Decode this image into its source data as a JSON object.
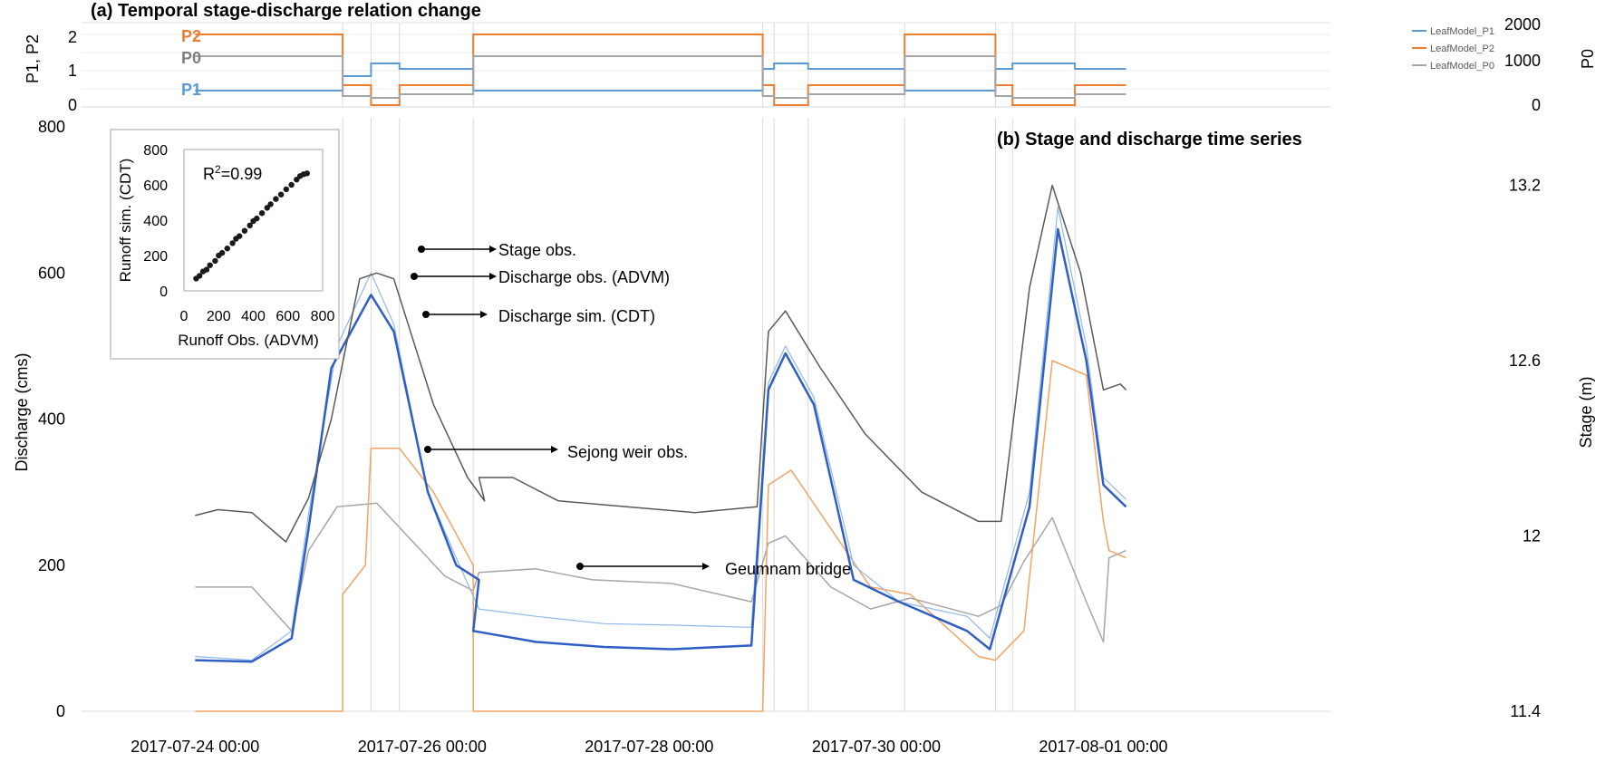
{
  "panel_a": {
    "title": "(a) Temporal stage-discharge relation change",
    "ylabel_left": "P1, P2",
    "ylabel_right": "P0",
    "left_ticks": [
      "2",
      "1",
      "0"
    ],
    "right_ticks": [
      "2000",
      "1000",
      "0"
    ],
    "series_labels": {
      "p2": "P2",
      "p0": "P0",
      "p1": "P1"
    },
    "legend": [
      "LeafModel_P1",
      "LeafModel_P2",
      "LeafModel_P0"
    ]
  },
  "panel_b": {
    "title": "(b) Stage and discharge time series",
    "ylabel_left": "Discharge (cms)",
    "ylabel_right": "Stage (m)",
    "left_ticks": [
      "800",
      "600",
      "400",
      "200",
      "0"
    ],
    "right_ticks": [
      "13.2",
      "12.6",
      "12",
      "11.4"
    ],
    "x_ticks": [
      "2017-07-24 00:00",
      "2017-07-26 00:00",
      "2017-07-28 00:00",
      "2017-07-30 00:00",
      "2017-08-01 00:00"
    ],
    "annotations": {
      "stage": "Stage obs.",
      "discharge_obs": "Discharge obs. (ADVM)",
      "discharge_sim": "Discharge sim. (CDT)",
      "sejong": "Sejong weir obs.",
      "geumnam": "Geumnam bridge"
    }
  },
  "inset": {
    "r2_prefix": "R",
    "r2_sup": "2",
    "r2_value": "=0.99",
    "xlabel": "Runoff Obs. (ADVM)",
    "ylabel": "Runoff sim. (CDT)",
    "x_ticks": [
      "0",
      "200",
      "400",
      "600",
      "800"
    ],
    "y_ticks": [
      "800",
      "600",
      "400",
      "200",
      "0"
    ]
  },
  "colors": {
    "p1": "#5b9bd5",
    "p2": "#ed7d31",
    "p0": "#a5a5a5",
    "discharge_sim": "#2f5fc4",
    "discharge_obs": "#8fb8e8",
    "stage": "#595959",
    "sejong": "#f4a261",
    "geumnam": "#a6a6a6"
  },
  "chart_data": [
    {
      "type": "line",
      "title": "(a) Temporal stage-discharge relation change",
      "x_unit": "days since 2017-07-24 00:00",
      "x_range": [
        -1,
        10
      ],
      "ylim_left": [
        0,
        2
      ],
      "ylim_right": [
        0,
        2000
      ],
      "series": [
        {
          "name": "LeafModel_P1",
          "axis": "left",
          "steps": [
            [
              0,
              0.45
            ],
            [
              1.3,
              0.45
            ],
            [
              1.3,
              0.85
            ],
            [
              1.55,
              0.85
            ],
            [
              1.55,
              1.2
            ],
            [
              1.8,
              1.2
            ],
            [
              1.8,
              1.05
            ],
            [
              2.45,
              1.05
            ],
            [
              2.45,
              0.45
            ],
            [
              5.0,
              0.45
            ],
            [
              5.0,
              1.05
            ],
            [
              5.1,
              1.05
            ],
            [
              5.1,
              1.2
            ],
            [
              5.4,
              1.2
            ],
            [
              5.4,
              1.05
            ],
            [
              6.25,
              1.05
            ],
            [
              6.25,
              0.45
            ],
            [
              7.05,
              0.45
            ],
            [
              7.05,
              1.05
            ],
            [
              7.2,
              1.05
            ],
            [
              7.2,
              1.2
            ],
            [
              7.75,
              1.2
            ],
            [
              7.75,
              1.05
            ],
            [
              8.2,
              1.05
            ]
          ]
        },
        {
          "name": "LeafModel_P2",
          "axis": "left",
          "steps": [
            [
              0,
              2.0
            ],
            [
              1.3,
              2.0
            ],
            [
              1.3,
              0.6
            ],
            [
              1.55,
              0.6
            ],
            [
              1.55,
              0.05
            ],
            [
              1.8,
              0.05
            ],
            [
              1.8,
              0.6
            ],
            [
              2.45,
              0.6
            ],
            [
              2.45,
              2.0
            ],
            [
              5.0,
              2.0
            ],
            [
              5.0,
              0.6
            ],
            [
              5.1,
              0.6
            ],
            [
              5.1,
              0.05
            ],
            [
              5.4,
              0.05
            ],
            [
              5.4,
              0.6
            ],
            [
              6.25,
              0.6
            ],
            [
              6.25,
              2.0
            ],
            [
              7.05,
              2.0
            ],
            [
              7.05,
              0.6
            ],
            [
              7.2,
              0.6
            ],
            [
              7.2,
              0.05
            ],
            [
              7.75,
              0.05
            ],
            [
              7.75,
              0.6
            ],
            [
              8.2,
              0.6
            ]
          ]
        },
        {
          "name": "LeafModel_P0",
          "axis": "right",
          "steps": [
            [
              0,
              1400
            ],
            [
              1.3,
              1400
            ],
            [
              1.3,
              300
            ],
            [
              1.55,
              300
            ],
            [
              1.55,
              250
            ],
            [
              1.8,
              250
            ],
            [
              1.8,
              350
            ],
            [
              2.45,
              350
            ],
            [
              2.45,
              1400
            ],
            [
              5.0,
              1400
            ],
            [
              5.0,
              300
            ],
            [
              5.1,
              300
            ],
            [
              5.1,
              250
            ],
            [
              5.4,
              250
            ],
            [
              5.4,
              350
            ],
            [
              6.25,
              350
            ],
            [
              6.25,
              1400
            ],
            [
              7.05,
              1400
            ],
            [
              7.05,
              300
            ],
            [
              7.2,
              300
            ],
            [
              7.2,
              250
            ],
            [
              7.75,
              250
            ],
            [
              7.75,
              350
            ],
            [
              8.2,
              350
            ]
          ]
        }
      ]
    },
    {
      "type": "line",
      "title": "(b) Stage and discharge time series",
      "x_unit": "days since 2017-07-24 00:00",
      "x_range": [
        -1,
        10
      ],
      "ylabel": "Discharge (cms)",
      "ylim": [
        0,
        800
      ],
      "ylabel_right": "Stage (m)",
      "ylim_right": [
        11.4,
        13.4
      ],
      "series": [
        {
          "name": "Stage obs.",
          "axis": "right",
          "points": [
            [
              0,
              12.07
            ],
            [
              0.2,
              12.09
            ],
            [
              0.5,
              12.08
            ],
            [
              0.8,
              11.98
            ],
            [
              1.0,
              12.13
            ],
            [
              1.2,
              12.4
            ],
            [
              1.45,
              12.88
            ],
            [
              1.6,
              12.9
            ],
            [
              1.75,
              12.88
            ],
            [
              2.1,
              12.45
            ],
            [
              2.4,
              12.2
            ],
            [
              2.55,
              12.12
            ],
            [
              2.5,
              12.2
            ],
            [
              2.8,
              12.2
            ],
            [
              3.2,
              12.12
            ],
            [
              3.8,
              12.1
            ],
            [
              4.4,
              12.08
            ],
            [
              4.95,
              12.1
            ],
            [
              5.05,
              12.7
            ],
            [
              5.2,
              12.77
            ],
            [
              5.5,
              12.58
            ],
            [
              5.9,
              12.35
            ],
            [
              6.4,
              12.15
            ],
            [
              6.9,
              12.05
            ],
            [
              7.1,
              12.05
            ],
            [
              7.35,
              12.85
            ],
            [
              7.55,
              13.2
            ],
            [
              7.8,
              12.9
            ],
            [
              8.0,
              12.5
            ],
            [
              8.15,
              12.52
            ],
            [
              8.2,
              12.5
            ]
          ]
        },
        {
          "name": "Discharge sim. (CDT)",
          "axis": "left",
          "points": [
            [
              0,
              70
            ],
            [
              0.5,
              68
            ],
            [
              0.85,
              100
            ],
            [
              1.0,
              250
            ],
            [
              1.2,
              470
            ],
            [
              1.55,
              570
            ],
            [
              1.75,
              520
            ],
            [
              2.05,
              300
            ],
            [
              2.3,
              200
            ],
            [
              2.5,
              180
            ],
            [
              2.45,
              110
            ],
            [
              3.0,
              95
            ],
            [
              3.6,
              88
            ],
            [
              4.2,
              85
            ],
            [
              4.9,
              90
            ],
            [
              5.05,
              440
            ],
            [
              5.2,
              490
            ],
            [
              5.45,
              420
            ],
            [
              5.8,
              180
            ],
            [
              6.2,
              150
            ],
            [
              6.8,
              110
            ],
            [
              7.0,
              85
            ],
            [
              7.35,
              280
            ],
            [
              7.6,
              660
            ],
            [
              7.85,
              480
            ],
            [
              8.0,
              310
            ],
            [
              8.2,
              280
            ]
          ]
        },
        {
          "name": "Discharge obs. (ADVM)",
          "axis": "left",
          "points": [
            [
              0,
              75
            ],
            [
              0.5,
              70
            ],
            [
              0.85,
              110
            ],
            [
              1.0,
              270
            ],
            [
              1.25,
              500
            ],
            [
              1.55,
              600
            ],
            [
              1.75,
              530
            ],
            [
              2.05,
              300
            ],
            [
              2.3,
              210
            ],
            [
              2.5,
              140
            ],
            [
              3.0,
              130
            ],
            [
              3.6,
              120
            ],
            [
              4.2,
              118
            ],
            [
              4.9,
              115
            ],
            [
              5.05,
              450
            ],
            [
              5.2,
              500
            ],
            [
              5.45,
              430
            ],
            [
              5.8,
              200
            ],
            [
              6.2,
              150
            ],
            [
              6.8,
              130
            ],
            [
              7.0,
              100
            ],
            [
              7.35,
              300
            ],
            [
              7.6,
              690
            ],
            [
              7.85,
              500
            ],
            [
              8.0,
              320
            ],
            [
              8.2,
              290
            ]
          ]
        },
        {
          "name": "Sejong weir obs.",
          "axis": "left",
          "points": [
            [
              0,
              0
            ],
            [
              1.3,
              0
            ],
            [
              1.3,
              160
            ],
            [
              1.5,
              200
            ],
            [
              1.55,
              360
            ],
            [
              1.8,
              360
            ],
            [
              2.1,
              300
            ],
            [
              2.45,
              200
            ],
            [
              2.45,
              0
            ],
            [
              5.0,
              0
            ],
            [
              5.05,
              310
            ],
            [
              5.25,
              330
            ],
            [
              5.6,
              250
            ],
            [
              5.95,
              170
            ],
            [
              6.3,
              160
            ],
            [
              6.9,
              75
            ],
            [
              7.05,
              70
            ],
            [
              7.3,
              110
            ],
            [
              7.55,
              480
            ],
            [
              7.85,
              460
            ],
            [
              8.0,
              260
            ],
            [
              8.05,
              220
            ],
            [
              8.2,
              210
            ]
          ]
        },
        {
          "name": "Geumnam bridge",
          "axis": "left",
          "points": [
            [
              0,
              170
            ],
            [
              0.5,
              170
            ],
            [
              0.85,
              110
            ],
            [
              1.0,
              220
            ],
            [
              1.25,
              280
            ],
            [
              1.6,
              285
            ],
            [
              2.2,
              185
            ],
            [
              2.45,
              165
            ],
            [
              2.5,
              190
            ],
            [
              3.0,
              195
            ],
            [
              3.5,
              180
            ],
            [
              4.2,
              175
            ],
            [
              4.9,
              150
            ],
            [
              5.05,
              230
            ],
            [
              5.2,
              240
            ],
            [
              5.6,
              170
            ],
            [
              5.95,
              140
            ],
            [
              6.3,
              155
            ],
            [
              6.9,
              130
            ],
            [
              7.1,
              145
            ],
            [
              7.3,
              205
            ],
            [
              7.55,
              265
            ],
            [
              7.85,
              150
            ],
            [
              8.0,
              95
            ],
            [
              8.05,
              210
            ],
            [
              8.2,
              220
            ]
          ]
        }
      ]
    },
    {
      "type": "scatter",
      "title": "R2=0.99",
      "xlabel": "Runoff Obs. (ADVM)",
      "ylabel": "Runoff sim. (CDT)",
      "xlim": [
        0,
        800
      ],
      "ylim": [
        0,
        800
      ],
      "points": [
        [
          70,
          70
        ],
        [
          90,
          85
        ],
        [
          110,
          110
        ],
        [
          130,
          120
        ],
        [
          150,
          145
        ],
        [
          180,
          170
        ],
        [
          200,
          200
        ],
        [
          220,
          215
        ],
        [
          250,
          240
        ],
        [
          280,
          270
        ],
        [
          300,
          295
        ],
        [
          320,
          310
        ],
        [
          350,
          340
        ],
        [
          380,
          370
        ],
        [
          400,
          395
        ],
        [
          420,
          410
        ],
        [
          450,
          440
        ],
        [
          480,
          470
        ],
        [
          500,
          490
        ],
        [
          530,
          520
        ],
        [
          560,
          545
        ],
        [
          590,
          575
        ],
        [
          620,
          600
        ],
        [
          650,
          630
        ],
        [
          670,
          650
        ],
        [
          690,
          660
        ],
        [
          710,
          665
        ]
      ]
    }
  ]
}
